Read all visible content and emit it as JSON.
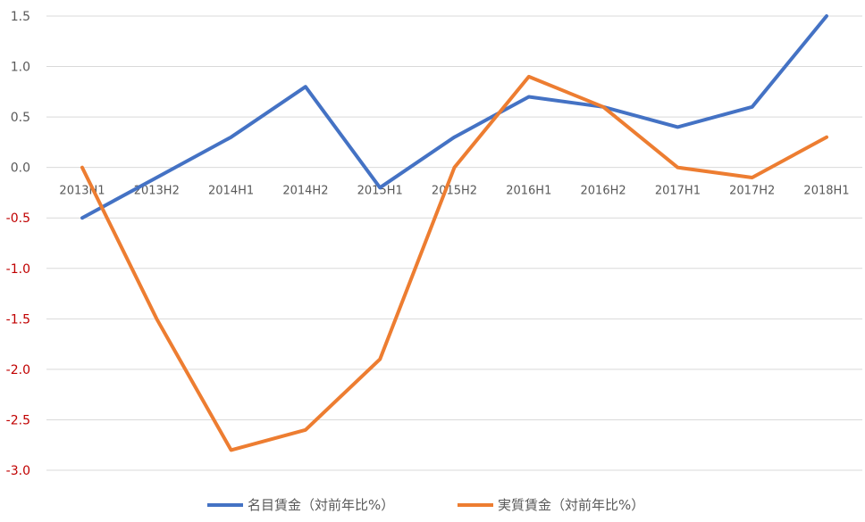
{
  "chart_data": {
    "type": "line",
    "categories": [
      "2013H1",
      "2013H2",
      "2014H1",
      "2014H2",
      "2015H1",
      "2015H2",
      "2016H1",
      "2016H2",
      "2017H1",
      "2017H2",
      "2018H1"
    ],
    "series": [
      {
        "name": "名目賃金（対前年比%）",
        "color": "#4472C4",
        "values": [
          -0.5,
          -0.1,
          0.3,
          0.8,
          -0.2,
          0.3,
          0.7,
          0.6,
          0.4,
          0.6,
          1.5
        ]
      },
      {
        "name": "実質賃金（対前年比%）",
        "color": "#ED7D31",
        "values": [
          0.0,
          -1.5,
          -2.8,
          -2.6,
          -1.9,
          0.0,
          0.9,
          0.6,
          0.0,
          -0.1,
          0.3
        ]
      }
    ],
    "yticks": [
      "1.5",
      "1.0",
      "0.5",
      "0.0",
      "-0.5",
      "-1.0",
      "-1.5",
      "-2.0",
      "-2.5",
      "-3.0"
    ],
    "ylim": [
      -3.0,
      1.5
    ],
    "title": "",
    "xlabel": "",
    "ylabel": "",
    "grid": true,
    "legend": "bottom",
    "colors": {
      "positive_tick": "#595959",
      "negative_tick": "#C00000",
      "grid": "#D9D9D9"
    }
  }
}
